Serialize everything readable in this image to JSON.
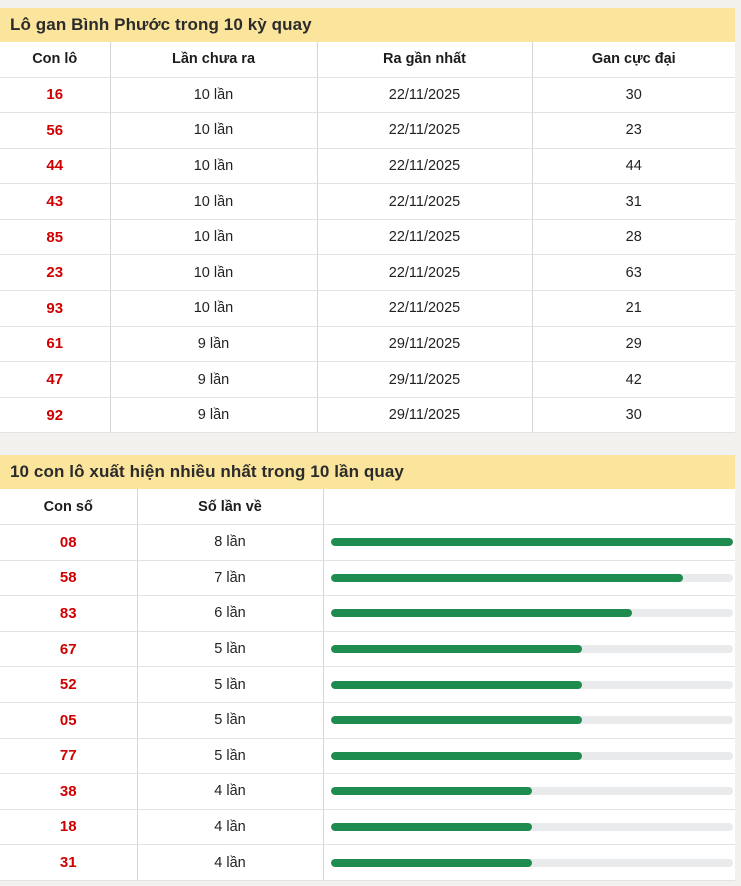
{
  "colors": {
    "page_bg": "#f2f1ee",
    "title_bg": "#fbe49c",
    "title_text": "#2b2b2b",
    "number_red": "#d10000",
    "bar_green": "#1e8b4f",
    "bar_track": "#e9eaec",
    "border": "#d6d6d6",
    "row_border": "#e2e2e2",
    "cell_text": "#222222"
  },
  "gan_table": {
    "title": "Lô gan Bình Phước trong 10 kỳ quay",
    "columns": [
      "Con lô",
      "Lần chưa ra",
      "Ra gần nhất",
      "Gan cực đại"
    ],
    "rows": [
      {
        "number": "16",
        "missed": "10 lần",
        "last_seen": "22/11/2025",
        "max_gan": "30"
      },
      {
        "number": "56",
        "missed": "10 lần",
        "last_seen": "22/11/2025",
        "max_gan": "23"
      },
      {
        "number": "44",
        "missed": "10 lần",
        "last_seen": "22/11/2025",
        "max_gan": "44"
      },
      {
        "number": "43",
        "missed": "10 lần",
        "last_seen": "22/11/2025",
        "max_gan": "31"
      },
      {
        "number": "85",
        "missed": "10 lần",
        "last_seen": "22/11/2025",
        "max_gan": "28"
      },
      {
        "number": "23",
        "missed": "10 lần",
        "last_seen": "22/11/2025",
        "max_gan": "63"
      },
      {
        "number": "93",
        "missed": "10 lần",
        "last_seen": "22/11/2025",
        "max_gan": "21"
      },
      {
        "number": "61",
        "missed": "9 lần",
        "last_seen": "29/11/2025",
        "max_gan": "29"
      },
      {
        "number": "47",
        "missed": "9 lần",
        "last_seen": "29/11/2025",
        "max_gan": "42"
      },
      {
        "number": "92",
        "missed": "9 lần",
        "last_seen": "29/11/2025",
        "max_gan": "30"
      }
    ]
  },
  "frequency_table": {
    "title": "10 con lô xuất hiện nhiều nhất trong 10 lần quay",
    "columns": [
      "Con số",
      "Số lần về"
    ],
    "max_count": 8,
    "rows": [
      {
        "number": "08",
        "count_label": "8 lần",
        "count": 8
      },
      {
        "number": "58",
        "count_label": "7 lần",
        "count": 7
      },
      {
        "number": "83",
        "count_label": "6 lần",
        "count": 6
      },
      {
        "number": "67",
        "count_label": "5 lần",
        "count": 5
      },
      {
        "number": "52",
        "count_label": "5 lần",
        "count": 5
      },
      {
        "number": "05",
        "count_label": "5 lần",
        "count": 5
      },
      {
        "number": "77",
        "count_label": "5 lần",
        "count": 5
      },
      {
        "number": "38",
        "count_label": "4 lần",
        "count": 4
      },
      {
        "number": "18",
        "count_label": "4 lần",
        "count": 4
      },
      {
        "number": "31",
        "count_label": "4 lần",
        "count": 4
      }
    ]
  },
  "chart_data": {
    "type": "bar",
    "orientation": "horizontal",
    "title": "10 con lô xuất hiện nhiều nhất trong 10 lần quay",
    "categories": [
      "08",
      "58",
      "83",
      "67",
      "52",
      "05",
      "77",
      "38",
      "18",
      "31"
    ],
    "values": [
      8,
      7,
      6,
      5,
      5,
      5,
      5,
      4,
      4,
      4
    ],
    "xlabel": "Số lần về",
    "ylabel": "",
    "xlim": [
      0,
      8
    ],
    "grid": false,
    "legend": "none",
    "bar_color": "#1e8b4f",
    "track_color": "#e9eaec"
  }
}
